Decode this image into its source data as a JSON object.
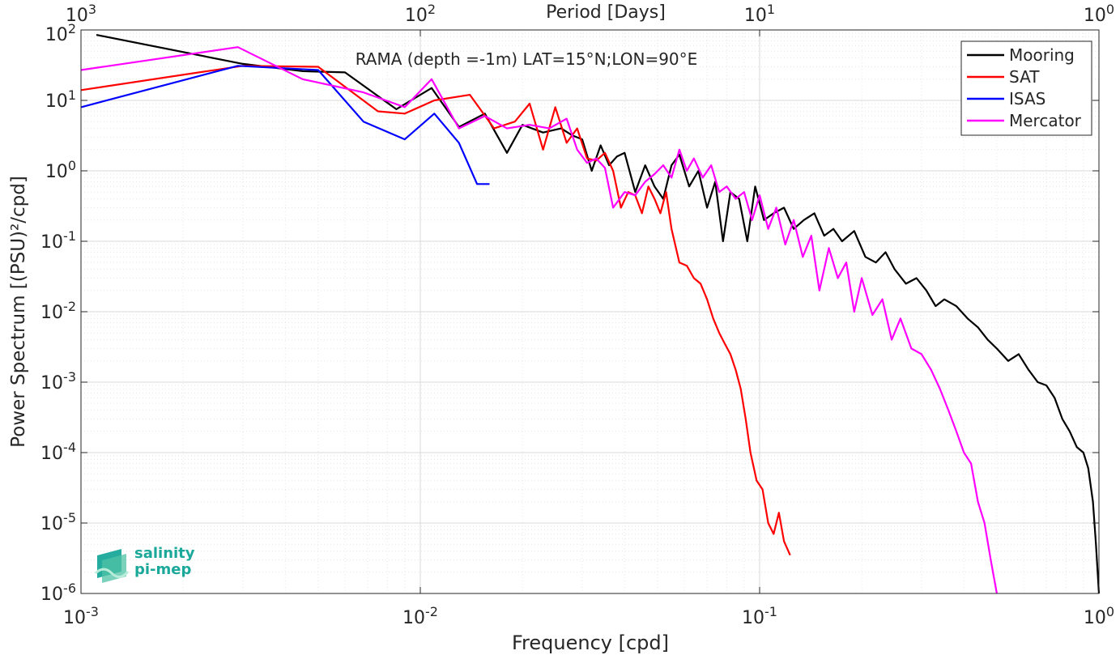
{
  "chart_data": {
    "type": "line",
    "title": "RAMA (depth =-1m) LAT=15°N;LON=90°E",
    "xlabel": "Frequency [cpd]",
    "ylabel": "Power Spectrum [(PSU)²/cpd]",
    "top_xlabel": "Period [Days]",
    "xscale": "log",
    "yscale": "log",
    "xlim": [
      0.001,
      1
    ],
    "ylim": [
      1e-06,
      100
    ],
    "grid": true,
    "legend_position": "top-right",
    "x_tick_labels": [
      "10-3",
      "10-2",
      "10-1",
      "100"
    ],
    "top_tick_labels": [
      "103",
      "102",
      "101",
      "100"
    ],
    "y_tick_labels": [
      "10-6",
      "10-5",
      "10-4",
      "10-3",
      "10-2",
      "10-1",
      "100",
      "101",
      "102"
    ],
    "series": [
      {
        "name": "Mooring",
        "color": "#000000",
        "x": [
          0.00111,
          0.003,
          0.0045,
          0.006,
          0.0085,
          0.0108,
          0.013,
          0.0155,
          0.018,
          0.02,
          0.023,
          0.026,
          0.028,
          0.03,
          0.032,
          0.034,
          0.036,
          0.038,
          0.04,
          0.043,
          0.046,
          0.049,
          0.052,
          0.055,
          0.058,
          0.062,
          0.066,
          0.07,
          0.074,
          0.078,
          0.082,
          0.087,
          0.092,
          0.097,
          0.103,
          0.11,
          0.118,
          0.126,
          0.135,
          0.145,
          0.155,
          0.165,
          0.175,
          0.19,
          0.205,
          0.22,
          0.235,
          0.25,
          0.27,
          0.29,
          0.31,
          0.33,
          0.35,
          0.38,
          0.41,
          0.44,
          0.47,
          0.5,
          0.54,
          0.58,
          0.62,
          0.66,
          0.7,
          0.74,
          0.78,
          0.82,
          0.86,
          0.9,
          0.93,
          0.96,
          0.98,
          1.0
        ],
        "y": [
          85,
          33,
          26,
          25,
          7.5,
          15,
          4.2,
          6.5,
          1.8,
          4.5,
          3.5,
          4.0,
          3.2,
          2.8,
          1.0,
          2.3,
          1.2,
          1.6,
          1.8,
          0.5,
          1.2,
          0.6,
          0.4,
          1.2,
          1.7,
          0.6,
          1.0,
          0.3,
          0.7,
          0.1,
          0.5,
          0.4,
          0.1,
          0.6,
          0.2,
          0.25,
          0.3,
          0.15,
          0.2,
          0.25,
          0.12,
          0.15,
          0.1,
          0.14,
          0.06,
          0.05,
          0.07,
          0.04,
          0.025,
          0.03,
          0.02,
          0.012,
          0.015,
          0.012,
          0.008,
          0.006,
          0.004,
          0.003,
          0.002,
          0.0025,
          0.0015,
          0.001,
          0.0009,
          0.0006,
          0.0003,
          0.0002,
          0.00012,
          0.0001,
          6e-05,
          2e-05,
          5e-06,
          1e-06
        ]
      },
      {
        "name": "SAT",
        "color": "#ff0000",
        "x": [
          0.001,
          0.003,
          0.005,
          0.0075,
          0.009,
          0.011,
          0.014,
          0.0165,
          0.019,
          0.021,
          0.023,
          0.025,
          0.027,
          0.029,
          0.031,
          0.033,
          0.035,
          0.037,
          0.039,
          0.041,
          0.043,
          0.045,
          0.047,
          0.049,
          0.051,
          0.053,
          0.055,
          0.058,
          0.061,
          0.064,
          0.067,
          0.07,
          0.073,
          0.076,
          0.079,
          0.082,
          0.085,
          0.088,
          0.091,
          0.094,
          0.098,
          0.102,
          0.106,
          0.11,
          0.114,
          0.118,
          0.123
        ],
        "y": [
          14,
          31,
          30,
          7,
          6.5,
          10,
          12,
          4,
          5,
          9,
          2,
          8,
          2.5,
          4,
          1.5,
          1.4,
          1.8,
          1.0,
          0.3,
          0.5,
          0.45,
          0.25,
          0.6,
          0.4,
          0.25,
          0.5,
          0.15,
          0.05,
          0.045,
          0.03,
          0.025,
          0.015,
          0.008,
          0.005,
          0.0035,
          0.0025,
          0.0015,
          0.0008,
          0.0003,
          0.0001,
          4e-05,
          3e-05,
          1e-05,
          7e-06,
          1.4e-05,
          5.5e-06,
          3.5e-06
        ]
      },
      {
        "name": "ISAS",
        "color": "#0000ff",
        "x": [
          0.001,
          0.0029,
          0.005,
          0.0068,
          0.009,
          0.011,
          0.013,
          0.0147,
          0.016
        ],
        "y": [
          8,
          31,
          27,
          5,
          2.8,
          6.5,
          2.5,
          0.65,
          0.65
        ]
      },
      {
        "name": "Mercator",
        "color": "#ff00ff",
        "x": [
          0.001,
          0.0029,
          0.0045,
          0.0068,
          0.009,
          0.0108,
          0.013,
          0.0155,
          0.018,
          0.021,
          0.024,
          0.027,
          0.029,
          0.031,
          0.033,
          0.035,
          0.037,
          0.04,
          0.043,
          0.046,
          0.049,
          0.052,
          0.055,
          0.058,
          0.061,
          0.064,
          0.068,
          0.072,
          0.076,
          0.08,
          0.085,
          0.09,
          0.095,
          0.1,
          0.106,
          0.112,
          0.119,
          0.126,
          0.134,
          0.142,
          0.15,
          0.16,
          0.17,
          0.18,
          0.19,
          0.2,
          0.215,
          0.23,
          0.245,
          0.26,
          0.28,
          0.3,
          0.32,
          0.34,
          0.36,
          0.38,
          0.4,
          0.42,
          0.44,
          0.46,
          0.48,
          0.5
        ],
        "y": [
          27,
          57,
          20,
          13,
          8,
          20,
          4,
          6,
          4,
          4.5,
          4,
          5.5,
          2,
          1.3,
          1.5,
          1.1,
          0.3,
          0.5,
          0.45,
          0.7,
          0.9,
          1.2,
          0.8,
          2.0,
          1.0,
          1.5,
          0.8,
          1.2,
          0.5,
          0.6,
          0.4,
          0.5,
          0.2,
          0.45,
          0.15,
          0.3,
          0.09,
          0.2,
          0.06,
          0.12,
          0.02,
          0.08,
          0.03,
          0.05,
          0.01,
          0.03,
          0.009,
          0.015,
          0.004,
          0.008,
          0.003,
          0.0025,
          0.0015,
          0.0008,
          0.0004,
          0.0002,
          0.0001,
          7e-05,
          2e-05,
          1e-05,
          3e-06,
          1e-06
        ]
      }
    ]
  },
  "logo": {
    "line1": "salinity",
    "line2": "pi-mep",
    "color": "#1aa89a"
  }
}
